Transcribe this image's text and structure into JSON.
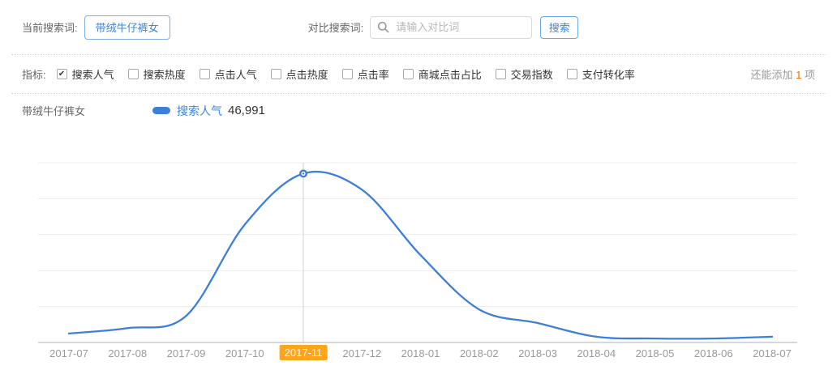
{
  "header": {
    "current_term_label": "当前搜索词:",
    "current_term": "带绒牛仔裤女",
    "compare_label": "对比搜索词:",
    "compare_placeholder": "请输入对比词",
    "search_button": "搜索"
  },
  "metrics": {
    "label": "指标:",
    "options": [
      {
        "label": "搜索人气",
        "checked": true
      },
      {
        "label": "搜索热度",
        "checked": false
      },
      {
        "label": "点击人气",
        "checked": false
      },
      {
        "label": "点击热度",
        "checked": false
      },
      {
        "label": "点击率",
        "checked": false
      },
      {
        "label": "商城点击占比",
        "checked": false
      },
      {
        "label": "交易指数",
        "checked": false
      },
      {
        "label": "支付转化率",
        "checked": false
      }
    ],
    "remaining": {
      "prefix": "还能添加 ",
      "count": "1",
      "suffix": " 项"
    }
  },
  "legend": {
    "term": "带绒牛仔裤女",
    "series_label": "搜索人气",
    "value": "46,991"
  },
  "colors": {
    "accent_blue": "#3d7edb",
    "highlight_orange": "#ffa41c",
    "count_orange": "#ff6a00",
    "gridline": "#ececec",
    "axis": "#b0b0b0",
    "hover_line": "#cfcfcf"
  },
  "chart_data": {
    "type": "line",
    "title": "",
    "xlabel": "",
    "ylabel": "",
    "categories": [
      "2017-07",
      "2017-08",
      "2017-09",
      "2017-10",
      "2017-11",
      "2017-12",
      "2018-01",
      "2018-02",
      "2018-03",
      "2018-04",
      "2018-05",
      "2018-06",
      "2018-07"
    ],
    "series": [
      {
        "name": "搜索人气",
        "values": [
          2500,
          4000,
          7400,
          32800,
          46991,
          42500,
          24300,
          9200,
          5400,
          1600,
          1100,
          1100,
          1600
        ]
      }
    ],
    "highlighted_index": 4,
    "highlighted_category": "2017-11",
    "highlighted_value": 46991,
    "ylim": [
      0,
      50000
    ],
    "grid_step": 10000,
    "grid": true,
    "legend_position": "top-left"
  }
}
